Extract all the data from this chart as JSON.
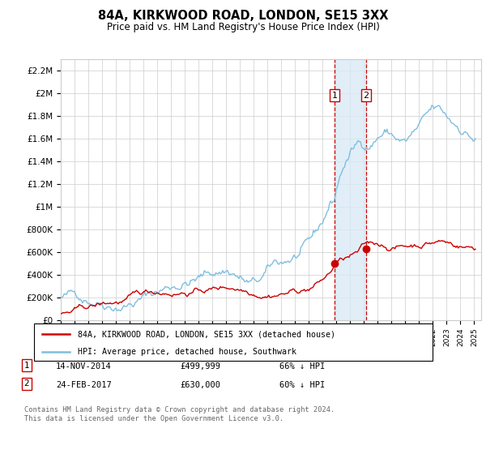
{
  "title": "84A, KIRKWOOD ROAD, LONDON, SE15 3XX",
  "subtitle": "Price paid vs. HM Land Registry's House Price Index (HPI)",
  "ylim": [
    0,
    2300000
  ],
  "yticks": [
    0,
    200000,
    400000,
    600000,
    800000,
    1000000,
    1200000,
    1400000,
    1600000,
    1800000,
    2000000,
    2200000
  ],
  "ytick_labels": [
    "£0",
    "£200K",
    "£400K",
    "£600K",
    "£800K",
    "£1M",
    "£1.2M",
    "£1.4M",
    "£1.6M",
    "£1.8M",
    "£2M",
    "£2.2M"
  ],
  "hpi_color": "#7fbfdf",
  "price_color": "#cc0000",
  "marker_color": "#cc0000",
  "dashed_line_color": "#cc0000",
  "shade_color": "#daeaf5",
  "transaction1_date": "14-NOV-2014",
  "transaction1_price": "£499,999",
  "transaction1_pct": "66% ↓ HPI",
  "transaction2_date": "24-FEB-2017",
  "transaction2_price": "£630,000",
  "transaction2_pct": "60% ↓ HPI",
  "footer": "Contains HM Land Registry data © Crown copyright and database right 2024.\nThis data is licensed under the Open Government Licence v3.0.",
  "trans1_x": 2014.87,
  "trans2_x": 2017.15,
  "trans1_y": 499999,
  "trans2_y": 630000,
  "xlim_start": 1995,
  "xlim_end": 2025.5
}
